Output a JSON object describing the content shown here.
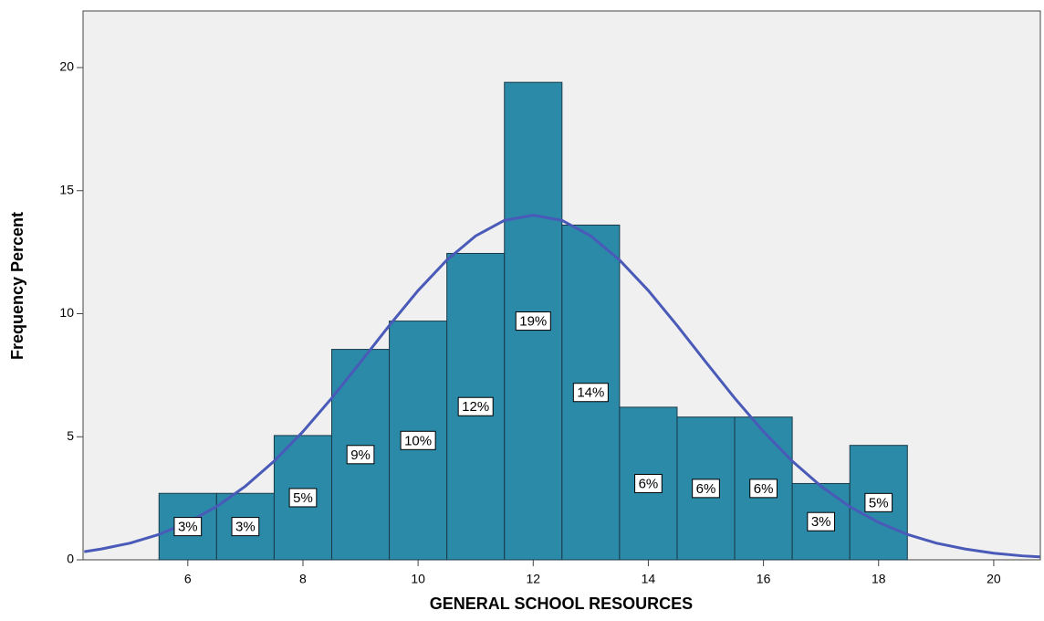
{
  "chart_data": {
    "type": "histogram",
    "x_label": "GENERAL SCHOOL RESOURCES",
    "y_label": "Frequency Percent",
    "bins": [
      5.5,
      6.5,
      7.5,
      8.5,
      9.5,
      10.5,
      11.5,
      12.5,
      13.5,
      14.5,
      15.5,
      16.5,
      17.5,
      18.5
    ],
    "values": [
      2.7,
      2.7,
      5.05,
      8.55,
      9.7,
      12.45,
      19.4,
      13.6,
      6.2,
      5.8,
      5.8,
      3.1,
      4.65
    ],
    "value_labels": [
      "3%",
      "3%",
      "5%",
      "9%",
      "10%",
      "12%",
      "19%",
      "14%",
      "6%",
      "6%",
      "6%",
      "3%",
      "5%"
    ],
    "color": "#2a8aa8",
    "curve": {
      "color": "#4a5ab8",
      "x": [
        4.2,
        4.5,
        5,
        5.5,
        6,
        6.5,
        7,
        7.5,
        8,
        8.5,
        9,
        9.5,
        10,
        10.5,
        11,
        11.5,
        12,
        12.5,
        13,
        13.5,
        14,
        14.5,
        15,
        15.5,
        16,
        16.5,
        17,
        17.5,
        18,
        18.5,
        19,
        19.5,
        20,
        20.5,
        20.8
      ],
      "values": [
        0.33,
        0.44,
        0.68,
        1.03,
        1.52,
        2.16,
        2.99,
        4.01,
        5.21,
        6.57,
        8.03,
        9.52,
        10.94,
        12.18,
        13.16,
        13.79,
        14,
        13.79,
        13.16,
        12.18,
        10.94,
        9.52,
        8.03,
        6.57,
        5.21,
        4.01,
        2.99,
        2.16,
        1.52,
        1.03,
        0.68,
        0.44,
        0.27,
        0.16,
        0.12
      ]
    },
    "xlim": [
      4.18,
      20.81
    ],
    "xticks": [
      6,
      8,
      10,
      12,
      14,
      16,
      18,
      20
    ],
    "ylim": [
      0,
      22.3
    ],
    "yticks": [
      0,
      5,
      10,
      15,
      20
    ]
  }
}
